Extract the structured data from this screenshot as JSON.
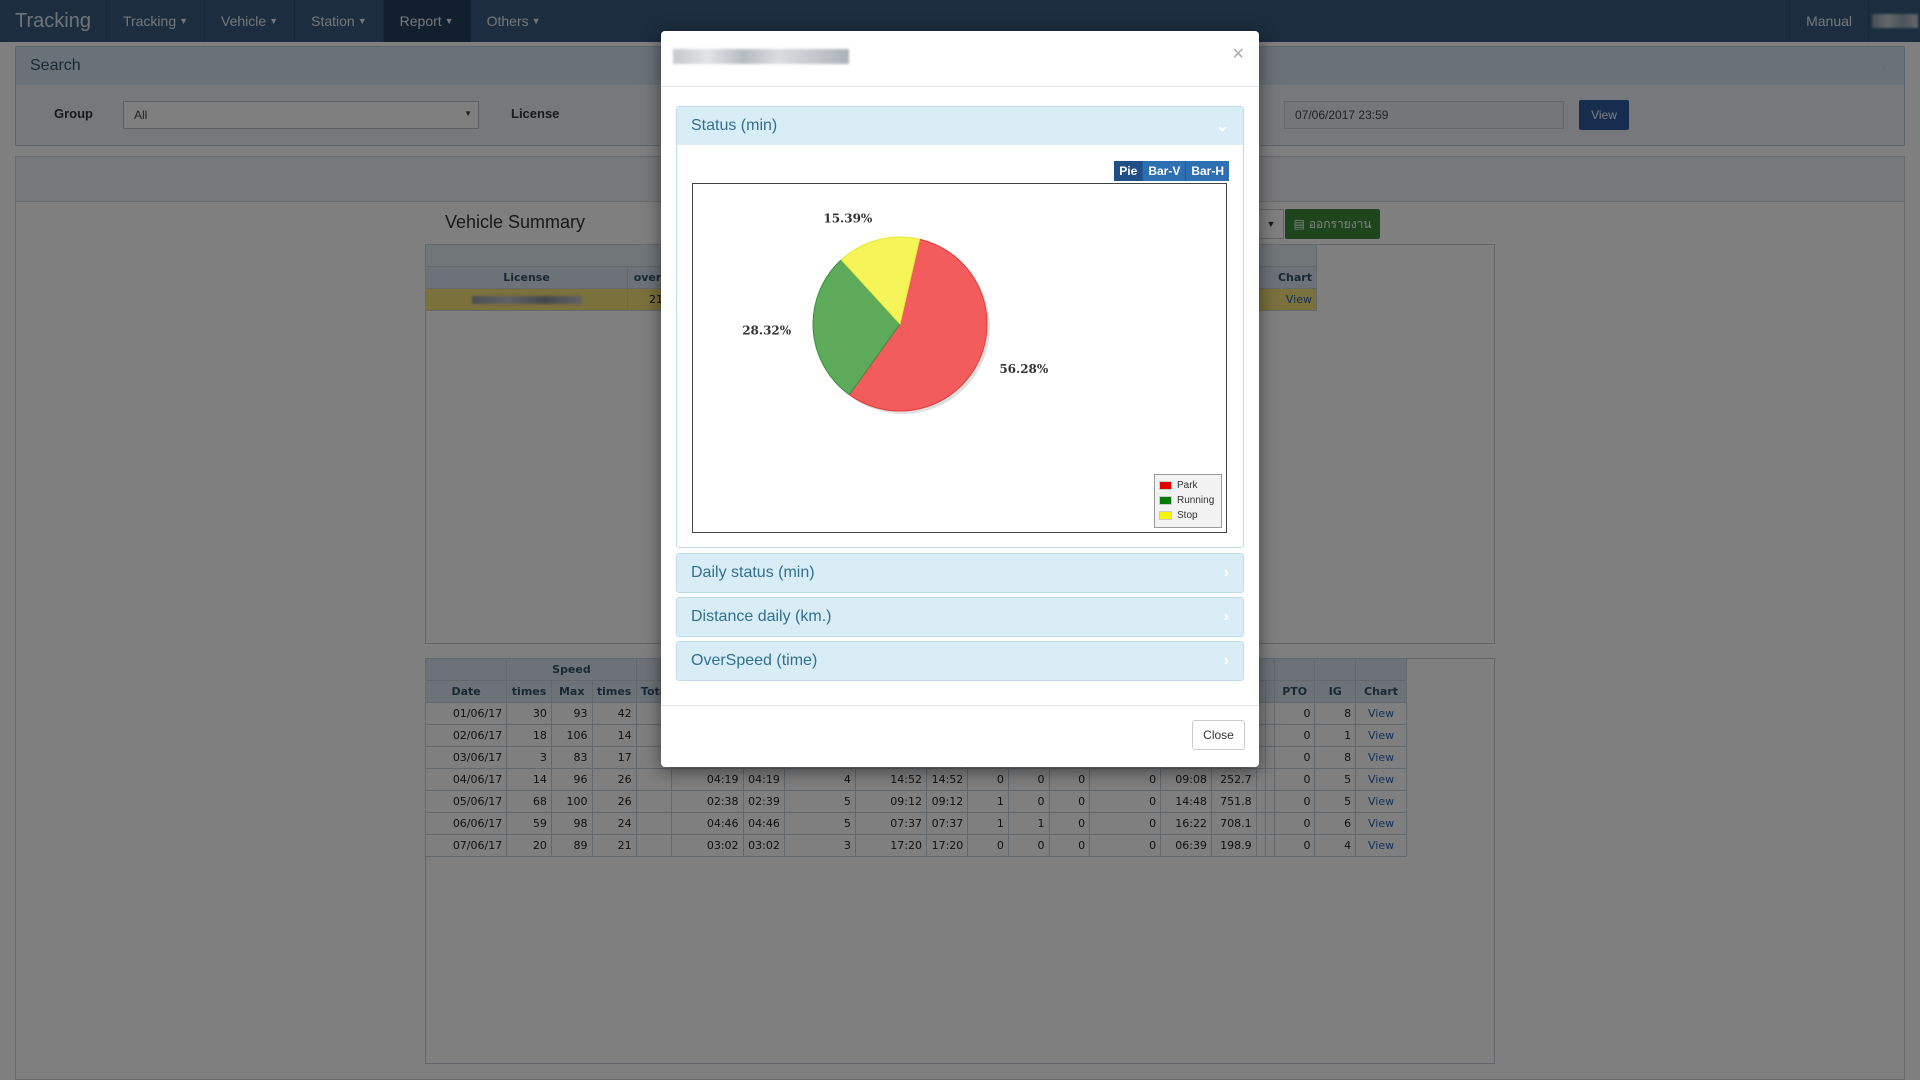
{
  "nav": {
    "brand": "Tracking",
    "menus": [
      "Tracking",
      "Vehicle",
      "Station",
      "Report",
      "Others"
    ],
    "manual": "Manual"
  },
  "search": {
    "title": "Search",
    "group_label": "Group",
    "group_value": "All",
    "license_label": "License",
    "end_date": "07/06/2017 23:59",
    "view_button": "View"
  },
  "summary": {
    "title": "Vehicle Summary",
    "export_label": "ออกรายงาน",
    "headers": [
      "License",
      "over",
      "Chart"
    ],
    "row": {
      "col2": "21",
      "chart": "View"
    }
  },
  "detail": {
    "group_headers": {
      "speed": "Speed"
    },
    "headers": [
      "Date",
      "times",
      "Max",
      "times",
      "Tota",
      "PTO",
      "IG",
      "Chart"
    ],
    "rows": [
      {
        "date": "01/06/17",
        "times": "30",
        "max": "93",
        "times2": "42",
        "pto": "0",
        "ig": "8",
        "chart": "View"
      },
      {
        "date": "02/06/17",
        "times": "18",
        "max": "106",
        "times2": "14",
        "pto": "0",
        "ig": "1",
        "chart": "View"
      },
      {
        "date": "03/06/17",
        "times": "3",
        "max": "83",
        "times2": "17",
        "pto": "0",
        "ig": "8",
        "chart": "View"
      },
      {
        "date": "04/06/17",
        "times": "14",
        "max": "96",
        "times2": "26",
        "c5": "04:19",
        "c6": "04:19",
        "c7": "4",
        "c8": "14:52",
        "c9": "14:52",
        "c10": "0",
        "c11": "0",
        "c12": "0",
        "c13": "0",
        "c14": "09:08",
        "c15": "252.7",
        "pto": "0",
        "ig": "5",
        "chart": "View"
      },
      {
        "date": "05/06/17",
        "times": "68",
        "max": "100",
        "times2": "26",
        "c5": "02:38",
        "c6": "02:39",
        "c7": "5",
        "c8": "09:12",
        "c9": "09:12",
        "c10": "1",
        "c11": "0",
        "c12": "0",
        "c13": "0",
        "c14": "14:48",
        "c15": "751.8",
        "pto": "0",
        "ig": "5",
        "chart": "View"
      },
      {
        "date": "06/06/17",
        "times": "59",
        "max": "98",
        "times2": "24",
        "c5": "04:46",
        "c6": "04:46",
        "c7": "5",
        "c8": "07:37",
        "c9": "07:37",
        "c10": "1",
        "c11": "1",
        "c12": "0",
        "c13": "0",
        "c14": "16:22",
        "c15": "708.1",
        "pto": "0",
        "ig": "6",
        "chart": "View"
      },
      {
        "date": "07/06/17",
        "times": "20",
        "max": "89",
        "times2": "21",
        "c5": "03:02",
        "c6": "03:02",
        "c7": "3",
        "c8": "17:20",
        "c9": "17:20",
        "c10": "0",
        "c11": "0",
        "c12": "0",
        "c13": "0",
        "c14": "06:39",
        "c15": "198.9",
        "pto": "0",
        "ig": "4",
        "chart": "View"
      }
    ]
  },
  "modal": {
    "sections": [
      {
        "title": "Status (min)",
        "expanded": true
      },
      {
        "title": "Daily status (min)",
        "expanded": false
      },
      {
        "title": "Distance daily (km.)",
        "expanded": false
      },
      {
        "title": "OverSpeed (time)",
        "expanded": false
      }
    ],
    "chart_types": [
      "Pie",
      "Bar-V",
      "Bar-H"
    ],
    "active_chart_type": "Pie",
    "close_button": "Close",
    "colors": {
      "park": "#f25c5c",
      "running": "#5caa5a",
      "stop": "#f5f55a",
      "legend_park": "#e00000",
      "legend_running": "#007a00",
      "legend_stop": "#f5f500"
    }
  },
  "chart_data": {
    "type": "pie",
    "labels": [
      "Park",
      "Running",
      "Stop"
    ],
    "values": [
      56.28,
      28.32,
      15.39
    ],
    "value_labels": [
      "56.28%",
      "28.32%",
      "15.39%"
    ],
    "legend_position": "bottom-right"
  }
}
